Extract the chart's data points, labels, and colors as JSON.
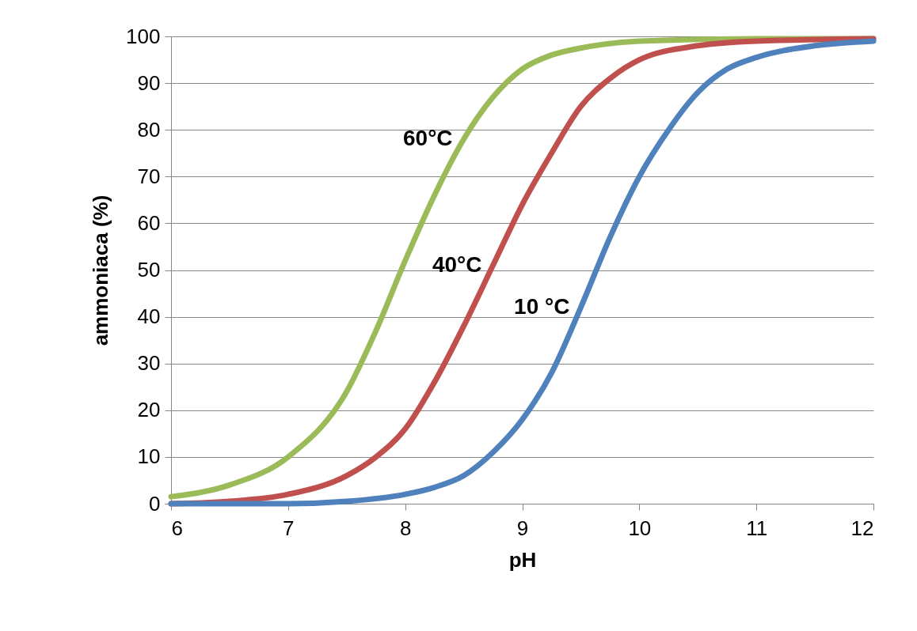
{
  "chart_data": {
    "type": "line",
    "xlabel": "pH",
    "ylabel": "ammoniaca (%)",
    "xlim": [
      6,
      12
    ],
    "xticks": [
      6,
      7,
      8,
      9,
      10,
      11,
      12
    ],
    "ylim": [
      0,
      100
    ],
    "yticks": [
      0,
      10,
      20,
      30,
      40,
      50,
      60,
      70,
      80,
      90,
      100
    ],
    "grid": "y",
    "legend": false,
    "marker": "none",
    "line_style": "solid",
    "series": [
      {
        "name": "60°C",
        "color": "#9bbb59",
        "x": [
          6,
          6.5,
          7,
          7.5,
          7.75,
          8,
          8.25,
          8.5,
          8.75,
          9,
          9.25,
          9.5,
          10,
          11,
          12
        ],
        "values": [
          1.5,
          4,
          10,
          24,
          37,
          52,
          66,
          78,
          87,
          93,
          96,
          97.5,
          99,
          99.5,
          99.5
        ]
      },
      {
        "name": "40°C",
        "color": "#c0504d",
        "x": [
          6,
          6.5,
          7,
          7.5,
          7.75,
          8,
          8.25,
          8.5,
          8.75,
          9,
          9.25,
          9.5,
          9.75,
          10,
          10.5,
          11,
          12
        ],
        "values": [
          0,
          0.5,
          2,
          6,
          10,
          16,
          26,
          38,
          51,
          64,
          75,
          85,
          91,
          95,
          98,
          99,
          99.5
        ]
      },
      {
        "name": "10 °C",
        "color": "#4f81bd",
        "x": [
          6,
          7,
          7.5,
          8,
          8.25,
          8.5,
          8.75,
          9,
          9.25,
          9.5,
          9.75,
          10,
          10.25,
          10.5,
          10.75,
          11,
          11.5,
          12
        ],
        "values": [
          0,
          0,
          0.5,
          2,
          3.5,
          6,
          11,
          18,
          28,
          42,
          57,
          70,
          80,
          88,
          93,
          95.5,
          98,
          99
        ]
      }
    ]
  }
}
